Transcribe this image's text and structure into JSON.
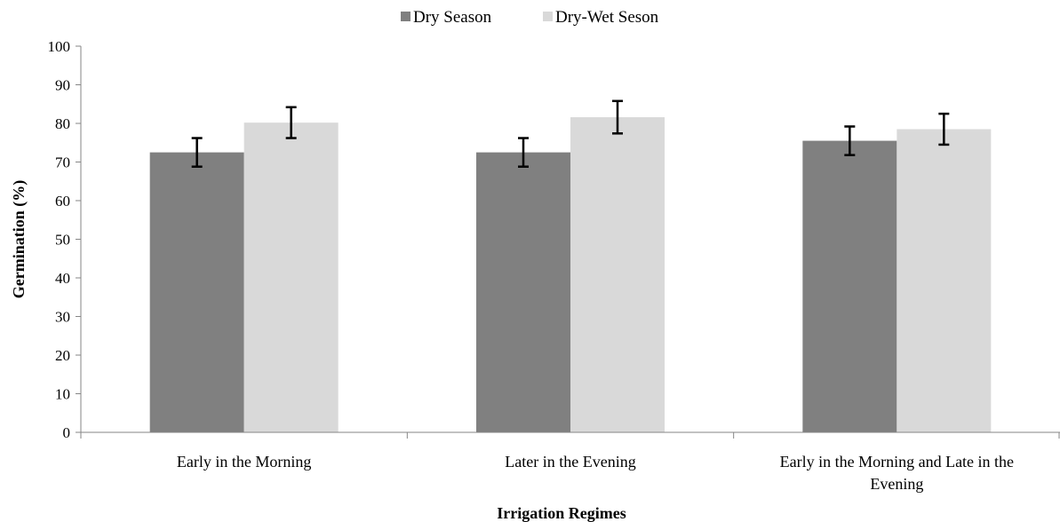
{
  "chart_data": {
    "type": "bar",
    "title": "",
    "xlabel": "Irrigation Regimes",
    "ylabel": "Germination (%)",
    "ylim": [
      0,
      100
    ],
    "yticks": [
      0,
      10,
      20,
      30,
      40,
      50,
      60,
      70,
      80,
      90,
      100
    ],
    "categories": [
      [
        "Early in the Morning"
      ],
      [
        "Later in the Evening"
      ],
      [
        "Early in the Morning and Late in the",
        "Evening"
      ]
    ],
    "series": [
      {
        "name": "Dry Season",
        "color": "#808080",
        "values": [
          72.5,
          72.5,
          75.5
        ],
        "errors": [
          3.7,
          3.7,
          3.7
        ]
      },
      {
        "name": "Dry-Wet Seson",
        "color": "#d9d9d9",
        "values": [
          80.2,
          81.6,
          78.5
        ],
        "errors": [
          4.0,
          4.2,
          4.0
        ]
      }
    ],
    "legend_position": "top-center",
    "grid": false
  }
}
